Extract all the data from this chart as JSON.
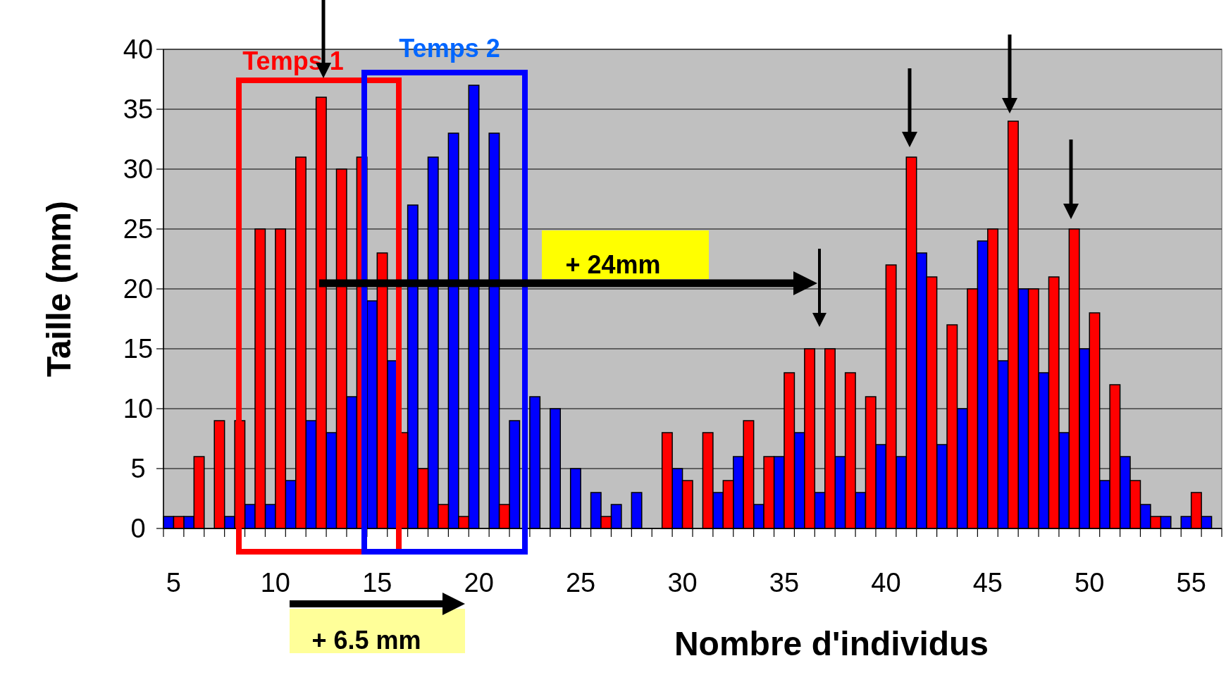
{
  "chart_data": {
    "type": "bar",
    "xlabel": "Nombre d'individus",
    "ylabel": "Taille (mm)",
    "categories": [
      "5",
      null,
      null,
      null,
      null,
      "10",
      null,
      null,
      null,
      null,
      "15",
      null,
      null,
      null,
      null,
      "20",
      null,
      null,
      null,
      null,
      "25",
      null,
      null,
      null,
      null,
      "30",
      null,
      null,
      null,
      null,
      "35",
      null,
      null,
      null,
      null,
      "40",
      null,
      null,
      null,
      null,
      "45",
      null,
      null,
      null,
      null,
      "50",
      null,
      null,
      null,
      null,
      "55",
      null
    ],
    "series": [
      {
        "color": "#0000ff",
        "values": [
          1,
          1,
          0,
          1,
          2,
          2,
          4,
          9,
          8,
          11,
          19,
          14,
          27,
          31,
          33,
          37,
          33,
          9,
          11,
          10,
          5,
          3,
          2,
          3,
          0,
          5,
          0,
          3,
          6,
          2,
          6,
          8,
          3,
          6,
          3,
          7,
          6,
          23,
          7,
          10,
          24,
          14,
          20,
          13,
          8,
          15,
          4,
          6,
          2,
          1,
          1,
          1
        ]
      },
      {
        "color": "#ff0000",
        "values": [
          1,
          6,
          9,
          9,
          25,
          25,
          31,
          36,
          30,
          31,
          23,
          8,
          5,
          2,
          1,
          0,
          2,
          0,
          0,
          0,
          0,
          1,
          0,
          0,
          8,
          4,
          8,
          4,
          9,
          6,
          13,
          15,
          15,
          13,
          11,
          22,
          31,
          21,
          17,
          20,
          25,
          34,
          20,
          21,
          25,
          18,
          12,
          4,
          1,
          0,
          3,
          0
        ]
      }
    ],
    "ylim": [
      0,
      40
    ],
    "yticks": [
      0,
      5,
      10,
      15,
      20,
      25,
      30,
      35,
      40
    ],
    "grid": "y",
    "annotations": [
      "Temps 1",
      "Temps 2",
      "+ 24mm",
      "+ 6.5 mm"
    ]
  }
}
